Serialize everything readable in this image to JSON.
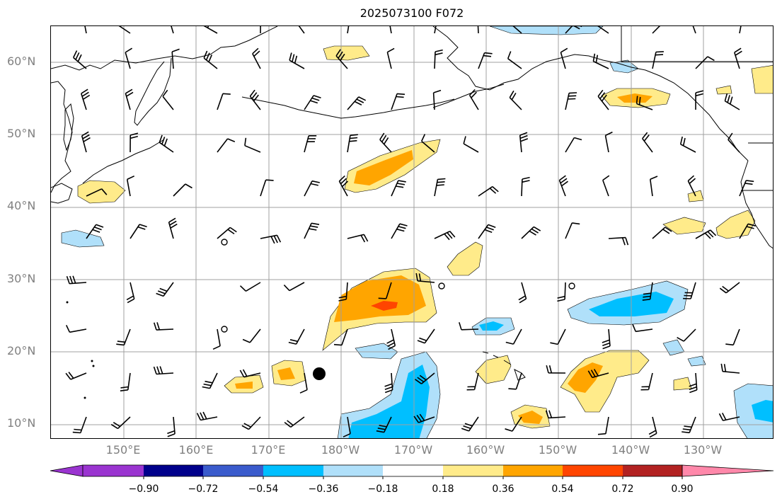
{
  "title": "2025073100 F072",
  "lat_labels": [
    "60°N",
    "50°N",
    "40°N",
    "30°N",
    "20°N",
    "10°N"
  ],
  "lon_labels": [
    "150°E",
    "160°E",
    "170°E",
    "180°W",
    "170°W",
    "160°W",
    "150°W",
    "140°W",
    "130°W"
  ],
  "colorbar": {
    "ticks": [
      "−0.90",
      "−0.72",
      "−0.54",
      "−0.36",
      "−0.18",
      "0.18",
      "0.36",
      "0.54",
      "0.72",
      "0.90"
    ],
    "colors": [
      "#9a34d0",
      "#00008b",
      "#3a5bcc",
      "#00bfff",
      "#b0e0fa",
      "#ffffff",
      "#ffeb8a",
      "#ffa500",
      "#ff4500",
      "#b22222",
      "#ff88aa"
    ]
  },
  "colors": {
    "land_outline": "#000000",
    "grid": "#a0a0a0",
    "tick_labels": "#808080"
  }
}
